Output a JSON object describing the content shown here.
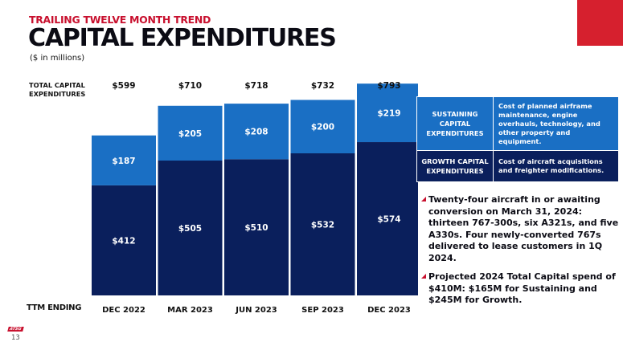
{
  "header": {
    "subtitle": "TRAILING TWELVE MONTH TREND",
    "title": "CAPITAL EXPENDITURES",
    "units": "($ in millions)"
  },
  "chart_data": {
    "type": "bar",
    "stacked": true,
    "categories": [
      "DEC  2022",
      "MAR 2023",
      "JUN 2023",
      "SEP 2023",
      "DEC 2023"
    ],
    "series": [
      {
        "name": "Growth Capital Expenditures",
        "values": [
          412,
          505,
          510,
          532,
          574
        ],
        "labels": [
          "$412",
          "$505",
          "$510",
          "$532",
          "$574"
        ]
      },
      {
        "name": "Sustaining Capital Expenditures",
        "values": [
          187,
          205,
          208,
          200,
          219
        ],
        "labels": [
          "$187",
          "$205",
          "$208",
          "$200",
          "$219"
        ]
      }
    ],
    "totals": [
      599,
      710,
      718,
      732,
      793
    ],
    "total_labels": [
      "$599",
      "$710",
      "$718",
      "$732",
      "$793"
    ],
    "total_row_label": "TOTAL CAPITAL EXPENDITURES",
    "xlabel": "TTM ENDING",
    "ylim": [
      0,
      900
    ],
    "grid": false
  },
  "legend_table": {
    "sustaining": {
      "label": "SUSTAINING CAPITAL EXPENDITURES",
      "description": "Cost of planned airframe maintenance, engine overhauls, technology, and other property and equipment."
    },
    "growth": {
      "label": "GROWTH CAPITAL EXPENDITURES",
      "description": "Cost of aircraft acquisitions and freighter modifications."
    }
  },
  "bullets": [
    "Twenty-four aircraft in or awaiting conversion on March 31, 2024: thirteen 767-300s, six A321s, and five A330s.  Four newly-converted 767s delivered to lease customers in 1Q 2024.",
    "Projected 2024 Total Capital spend of $410M:  $165M for Sustaining and $245M for Growth."
  ],
  "footer": {
    "logo_text": "ATSG",
    "page_number": "13"
  },
  "colors": {
    "accent": "#d6202e",
    "subtitle_red": "#c8102e",
    "growth_bar": "#0a1f5c",
    "sustaining_bar": "#1a6fc4",
    "bar_label": "#ffffff"
  }
}
